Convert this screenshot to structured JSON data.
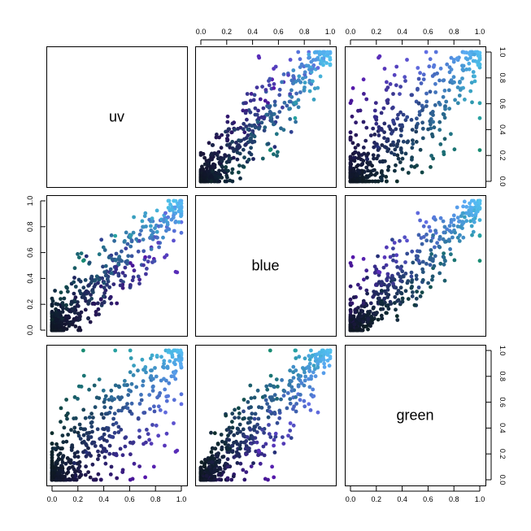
{
  "chart_data": {
    "type": "scatter",
    "kind": "pairs-matrix",
    "variables": [
      "uv",
      "blue",
      "green"
    ],
    "axis_range": [
      0,
      1
    ],
    "ticks": [
      0.0,
      0.2,
      0.4,
      0.6,
      0.8,
      1.0
    ],
    "tick_labels": [
      "0.0",
      "0.2",
      "0.4",
      "0.6",
      "0.8",
      "1.0"
    ],
    "grid": false,
    "legend": "none",
    "n_points_estimate": 500,
    "point_color_mapping": "points colored by (uv, blue, green) triplet: dark navy near 0, dark green for green-dominant, purple for uv-dominant, light blue near 1",
    "color_scale": {
      "low": "#101820",
      "green_dominant": "#0e5a3f",
      "uv_dominant": "#3a2f80",
      "blue_dominant": "#4f6fd0",
      "high": "#55a8ee"
    },
    "axis_placement": {
      "top_axes_over_columns": [
        2,
        3
      ],
      "right_axes_beside_rows": [
        1,
        3
      ],
      "left_axes_beside_rows": [
        2
      ],
      "bottom_axes_under_columns": [
        1,
        3
      ]
    }
  }
}
